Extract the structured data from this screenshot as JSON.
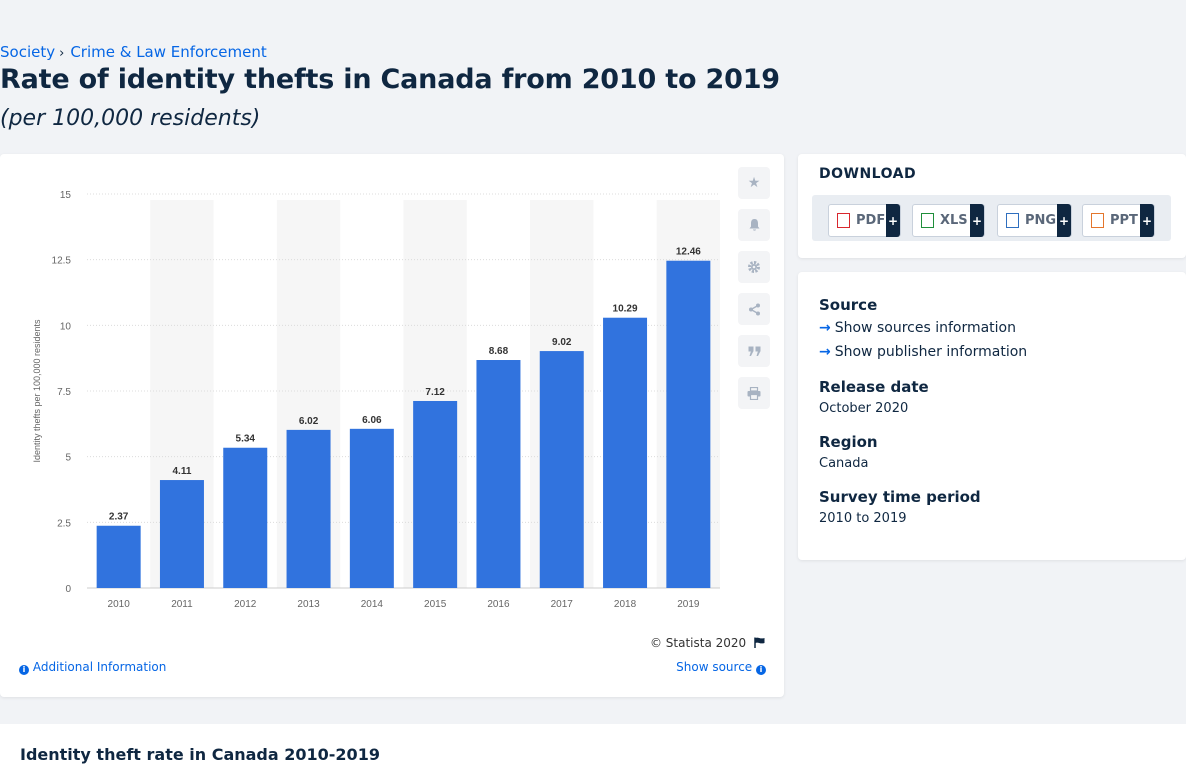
{
  "breadcrumb": {
    "item1": "Society",
    "sep": "›",
    "item2": "Crime & Law Enforcement"
  },
  "title": "Rate of identity thefts in Canada from 2010 to 2019",
  "subtitle": "(per 100,000 residents)",
  "chart_data": {
    "type": "bar",
    "categories": [
      "2010",
      "2011",
      "2012",
      "2013",
      "2014",
      "2015",
      "2016",
      "2017",
      "2018",
      "2019"
    ],
    "values": [
      2.37,
      4.11,
      5.34,
      6.02,
      6.06,
      7.12,
      8.68,
      9.02,
      10.29,
      12.46
    ],
    "value_labels": [
      "2.37",
      "4.11",
      "5.34",
      "6.02",
      "6.06",
      "7.12",
      "8.68",
      "9.02",
      "10.29",
      "12.46"
    ],
    "ylabel": "Identity thefts per 100,000 residents",
    "xlabel": "",
    "ylim": [
      0,
      15
    ],
    "yticks": [
      "0",
      "2.5",
      "5",
      "7.5",
      "10",
      "12.5",
      "15"
    ],
    "bar_color": "#3173de",
    "grid": true
  },
  "chart_footer": {
    "copyright": "© Statista 2020",
    "additional_info": "Additional Information",
    "show_source": "Show source"
  },
  "tools": [
    "star-icon",
    "bell-icon",
    "gear-icon",
    "share-icon",
    "quote-icon",
    "print-icon"
  ],
  "download": {
    "title": "DOWNLOAD",
    "buttons": [
      {
        "label": "PDF",
        "plus": "+",
        "color": "#d9272e"
      },
      {
        "label": "XLS",
        "plus": "+",
        "color": "#1f8f3a"
      },
      {
        "label": "PNG",
        "plus": "+",
        "color": "#2f6fbf"
      },
      {
        "label": "PPT",
        "plus": "+",
        "color": "#e4762c"
      }
    ]
  },
  "meta": {
    "source_h": "Source",
    "sources_link": "Show sources information",
    "publisher_link": "Show publisher information",
    "release_h": "Release date",
    "release_v": "October 2020",
    "region_h": "Region",
    "region_v": "Canada",
    "survey_h": "Survey time period",
    "survey_v": "2010 to 2019"
  },
  "bottom": {
    "title": "Identity theft rate in Canada 2010-2019"
  }
}
